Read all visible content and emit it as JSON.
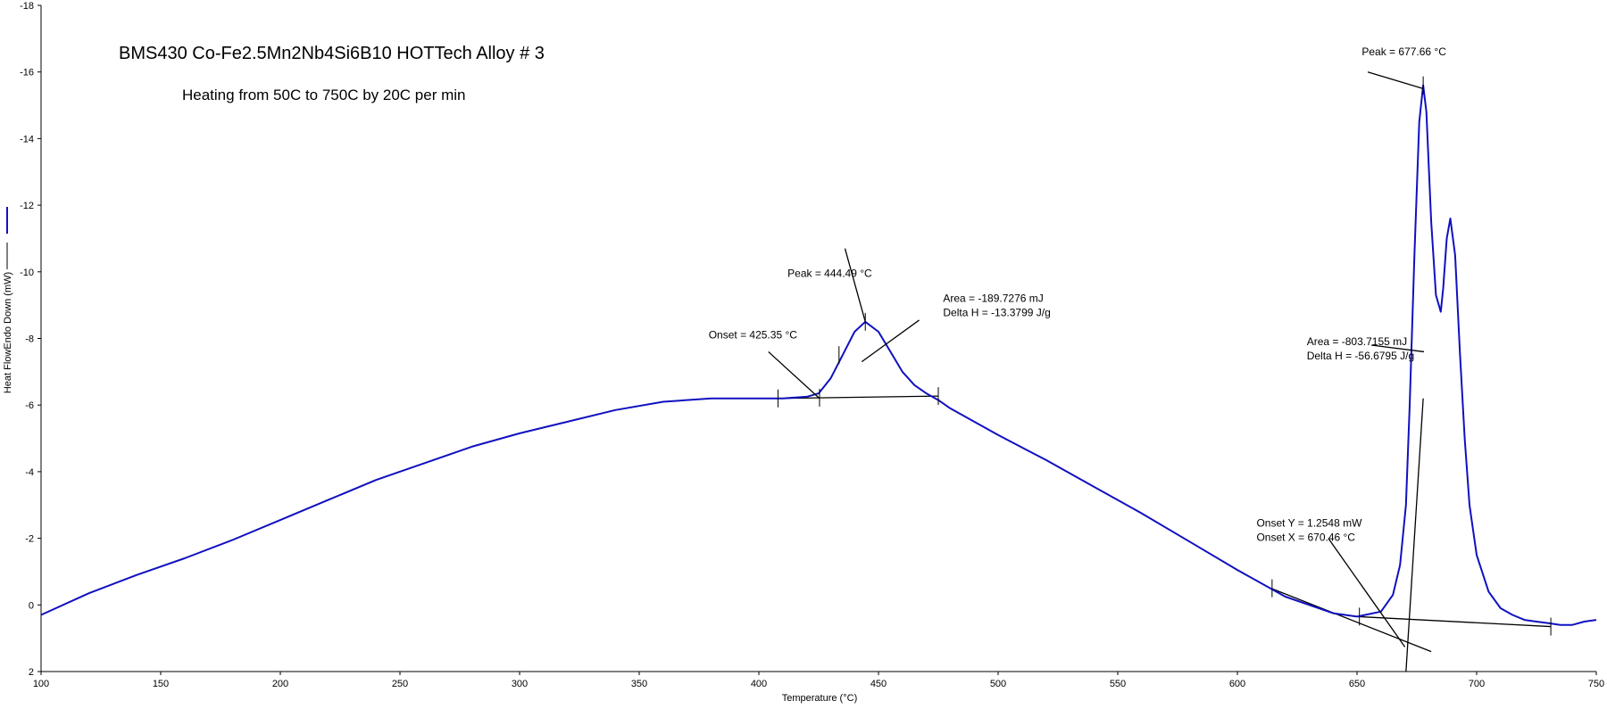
{
  "chart_data": {
    "type": "line",
    "title": "BMS430 Co-Fe2.5Mn2Nb4Si6B10 HOTTech Alloy # 3",
    "subtitle": "Heating from 50C to 750C by 20C per min",
    "xlabel": "Temperature (°C)",
    "ylabel": "Heat FlowEndo Down (mW)",
    "xlim": [
      100,
      750
    ],
    "ylim": [
      2,
      -18
    ],
    "y_inverted": true,
    "grid": false,
    "x_ticks": [
      "100",
      "150",
      "200",
      "250",
      "300",
      "350",
      "400",
      "450",
      "500",
      "550",
      "600",
      "650",
      "700",
      "750"
    ],
    "y_ticks": [
      "-18",
      "-16",
      "-14",
      "-12",
      "-10",
      "-8",
      "-6",
      "-4",
      "-2",
      "0",
      "2"
    ],
    "series": [
      {
        "name": "",
        "color": "#1010c0",
        "x": [
          100,
          120,
          140,
          160,
          180,
          200,
          220,
          240,
          260,
          280,
          300,
          320,
          340,
          360,
          380,
          400,
          410,
          420,
          425,
          430,
          435,
          440,
          444.49,
          450,
          455,
          460,
          465,
          470,
          475,
          480,
          500,
          520,
          540,
          560,
          580,
          600,
          620,
          640,
          650,
          660,
          665,
          668,
          670.46,
          672,
          674,
          676,
          677.66,
          679,
          681,
          683,
          685,
          686,
          687.5,
          689,
          691,
          693,
          695,
          697,
          700,
          705,
          710,
          715,
          720,
          725,
          730,
          735,
          740,
          745,
          750
        ],
        "y": [
          0.3,
          -0.35,
          -0.9,
          -1.4,
          -1.95,
          -2.55,
          -3.15,
          -3.75,
          -4.25,
          -4.75,
          -5.15,
          -5.5,
          -5.85,
          -6.1,
          -6.2,
          -6.2,
          -6.2,
          -6.25,
          -6.35,
          -6.8,
          -7.5,
          -8.2,
          -8.5,
          -8.2,
          -7.6,
          -7.0,
          -6.6,
          -6.35,
          -6.15,
          -5.9,
          -5.1,
          -4.35,
          -3.55,
          -2.75,
          -1.9,
          -1.05,
          -0.25,
          0.25,
          0.35,
          0.2,
          -0.3,
          -1.2,
          -3.0,
          -6.0,
          -10.5,
          -14.5,
          -15.6,
          -14.8,
          -11.5,
          -9.3,
          -8.8,
          -9.5,
          -11.0,
          -11.6,
          -10.5,
          -7.6,
          -5.0,
          -3.0,
          -1.5,
          -0.4,
          0.1,
          0.3,
          0.45,
          0.5,
          0.55,
          0.6,
          0.6,
          0.5,
          0.45
        ]
      }
    ],
    "baselines": [
      {
        "x": [
          408,
          475
        ],
        "y": [
          -6.2,
          -6.27
        ]
      },
      {
        "x": [
          650,
          731
        ],
        "y": [
          0.35,
          0.65
        ]
      },
      {
        "x": [
          614,
          681
        ],
        "y": [
          -0.5,
          1.4
        ]
      },
      {
        "x": [
          670.46,
          677.66
        ],
        "y": [
          2.0,
          -6.2
        ]
      }
    ],
    "markers": [
      {
        "x": 408,
        "y": -6.2
      },
      {
        "x": 425.35,
        "y": -6.22
      },
      {
        "x": 433.5,
        "y": -7.5
      },
      {
        "x": 444.49,
        "y": -8.5
      },
      {
        "x": 475,
        "y": -6.27
      },
      {
        "x": 614.5,
        "y": -0.5
      },
      {
        "x": 651,
        "y": 0.35
      },
      {
        "x": 677.66,
        "y": -15.6
      },
      {
        "x": 731,
        "y": 0.65
      }
    ],
    "annotations": [
      {
        "lines": [
          "Peak = 444.49 °C"
        ],
        "text_x": 412,
        "text_y": -9.85,
        "line_from": [
          436,
          -10.7
        ],
        "line_to": [
          444.49,
          -8.5
        ]
      },
      {
        "lines": [
          "Area = -189.7276 mJ",
          "Delta H = -13.3799 J/g"
        ],
        "text_x": 477,
        "text_y": -9.1,
        "line_from": [
          467,
          -8.55
        ],
        "line_to": [
          443,
          -7.3
        ]
      },
      {
        "lines": [
          "Onset = 425.35 °C"
        ],
        "text_x": 379,
        "text_y": -8.0,
        "line_from": [
          404,
          -7.6
        ],
        "line_to": [
          425.35,
          -6.2
        ]
      },
      {
        "lines": [
          "Peak = 677.66 °C"
        ],
        "text_x": 652,
        "text_y": -16.5,
        "line_from": [
          654.5,
          -16.0
        ],
        "line_to": [
          677.66,
          -15.5
        ]
      },
      {
        "lines": [
          "Area = -803.7155 mJ",
          "Delta H = -56.6795 J/g"
        ],
        "text_x": 629,
        "text_y": -7.8,
        "line_from": [
          656,
          -7.8
        ],
        "line_to": [
          678,
          -7.6
        ]
      },
      {
        "lines": [
          "Onset Y = 1.2548 mW",
          "Onset X = 670.46 °C"
        ],
        "text_x": 608,
        "text_y": -2.35,
        "line_from": [
          638,
          -2.0
        ],
        "line_to": [
          670,
          1.26
        ]
      }
    ]
  }
}
